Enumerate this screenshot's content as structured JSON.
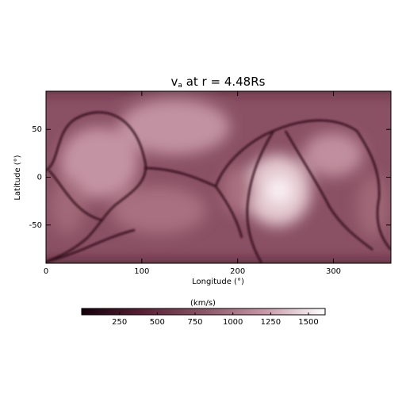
{
  "chart_data": {
    "type": "heatmap",
    "title": {
      "symbol": "v",
      "subscript": "a",
      "text": " at r = 4.48Rs"
    },
    "xlabel": "Longitude (°)",
    "ylabel": "Latitude (°)",
    "xlim": [
      0,
      360
    ],
    "xticks": [
      0,
      100,
      200,
      300
    ],
    "ylim": [
      -90,
      90
    ],
    "yticks": [
      -50,
      0,
      50
    ],
    "colorbar": {
      "label": "(km/s)",
      "lim": [
        0,
        1610
      ],
      "ticks": [
        250,
        500,
        750,
        1000,
        1250,
        1500
      ],
      "colormap": [
        "#14000a",
        "#5a1f34",
        "#8c5468",
        "#c896a6",
        "#ffffff"
      ]
    }
  }
}
